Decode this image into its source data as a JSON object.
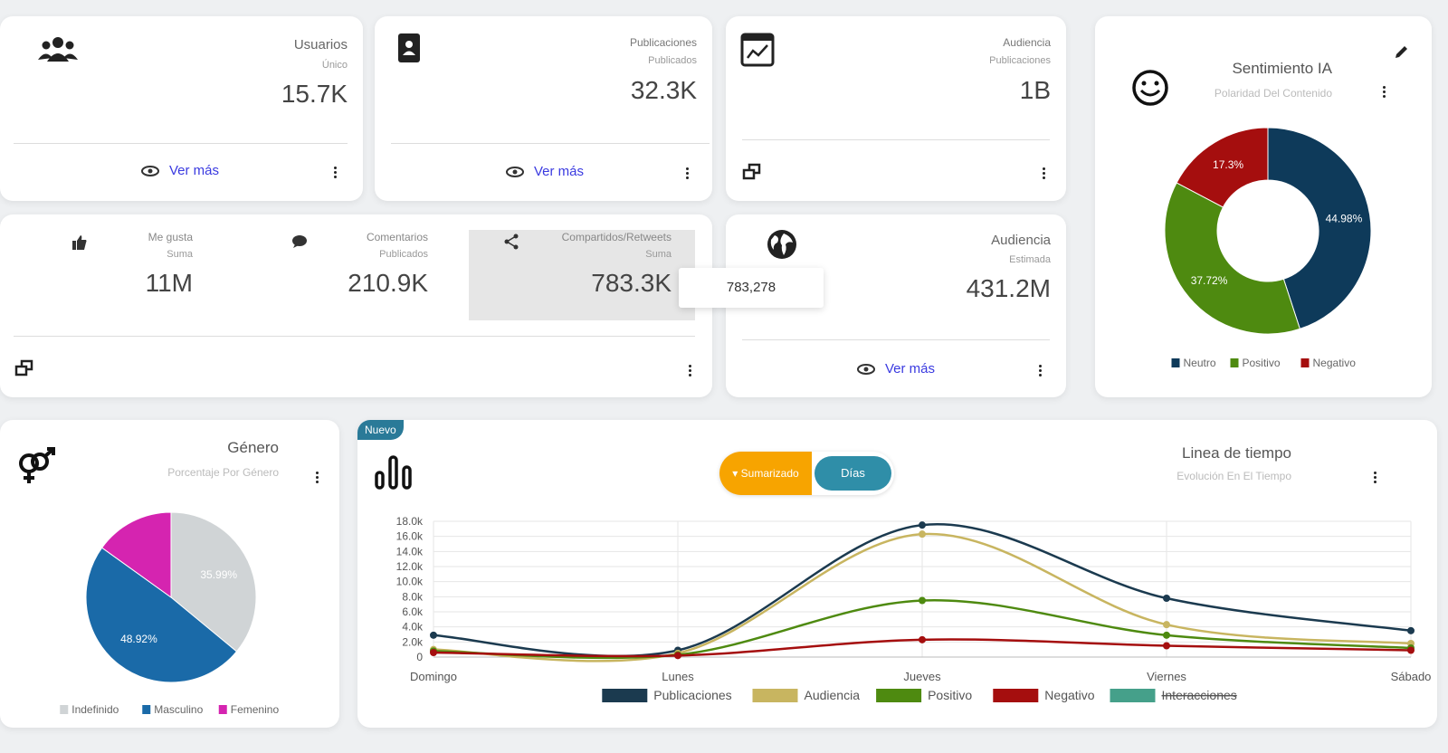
{
  "cards": [
    {
      "title": "Usuarios",
      "subtitle": "Único",
      "value": "15.7K",
      "link": "Ver más"
    },
    {
      "title": "Publicaciones",
      "subtitle": "Publicados",
      "value": "32.3K",
      "link": "Ver más"
    },
    {
      "title": "Audiencia",
      "subtitle": "Publicaciones",
      "value": "1B"
    },
    {
      "title": "Audiencia",
      "subtitle": "Estimada",
      "value": "431.2M",
      "link": "Ver más"
    }
  ],
  "engagement": {
    "items": [
      {
        "title": "Me gusta",
        "subtitle": "Suma",
        "value": "11M"
      },
      {
        "title": "Comentarios",
        "subtitle": "Publicados",
        "value": "210.9K"
      },
      {
        "title": "Compartidos/Retweets",
        "subtitle": "Suma",
        "value": "783.3K"
      }
    ],
    "tooltip": "783,278"
  },
  "timeline_controls": {
    "badge": "Nuevo",
    "buttons": [
      "Sumarizado",
      "Días"
    ]
  },
  "chart_data": [
    {
      "type": "donut",
      "title": "Sentimiento IA",
      "subtitle": "Polaridad Del Contenido",
      "categories": [
        "Neutro",
        "Positivo",
        "Negativo"
      ],
      "values": [
        44.98,
        37.72,
        17.3
      ],
      "value_labels": [
        "44.98%",
        "37.72%",
        "17.3%"
      ],
      "colors": [
        "#0e3a5a",
        "#4e8a10",
        "#a50e0e"
      ],
      "legend": "bottom"
    },
    {
      "type": "pie",
      "title": "Género",
      "subtitle": "Porcentaje Por Género",
      "categories": [
        "Indefinido",
        "Masculino",
        "Femenino"
      ],
      "values": [
        35.99,
        48.92,
        15.09
      ],
      "value_labels": [
        "35.99%",
        "48.92%",
        null
      ],
      "colors": [
        "#d0d4d6",
        "#1a6aa8",
        "#d524b0"
      ],
      "legend": "bottom"
    },
    {
      "type": "line",
      "title": "Linea de tiempo",
      "subtitle": "Evolución En El Tiempo",
      "categories": [
        "Domingo",
        "Lunes",
        "Jueves",
        "Viernes",
        "Sábado"
      ],
      "ylim": [
        0,
        18000
      ],
      "yticks": [
        0,
        {
          "value": 2000,
          "label": "2.0k"
        },
        {
          "value": 4000,
          "label": "4.0k"
        },
        {
          "value": 6000,
          "label": "6.0k"
        },
        {
          "value": 8000,
          "label": "8.0k"
        },
        {
          "value": 10000,
          "label": "10.0k"
        },
        {
          "value": 12000,
          "label": "12.0k"
        },
        {
          "value": 14000,
          "label": "14.0k"
        },
        {
          "value": 16000,
          "label": "16.0k"
        },
        {
          "value": 18000,
          "label": "18.0k"
        }
      ],
      "grid": true,
      "legend": "bottom",
      "series": [
        {
          "name": "Publicaciones",
          "color": "#1b3a4f",
          "values": [
            2900,
            900,
            17500,
            7800,
            3500
          ]
        },
        {
          "name": "Audiencia",
          "color": "#c8b560",
          "values": [
            1000,
            500,
            16300,
            4300,
            1800
          ]
        },
        {
          "name": "Positivo",
          "color": "#4e8a10",
          "values": [
            800,
            300,
            7500,
            2900,
            1200
          ]
        },
        {
          "name": "Negativo",
          "color": "#a50e0e",
          "values": [
            600,
            200,
            2300,
            1500,
            900
          ]
        },
        {
          "name": "Interacciones",
          "color": "#45a08a",
          "hidden": true,
          "values": [
            null,
            null,
            null,
            null,
            null
          ]
        }
      ]
    }
  ]
}
